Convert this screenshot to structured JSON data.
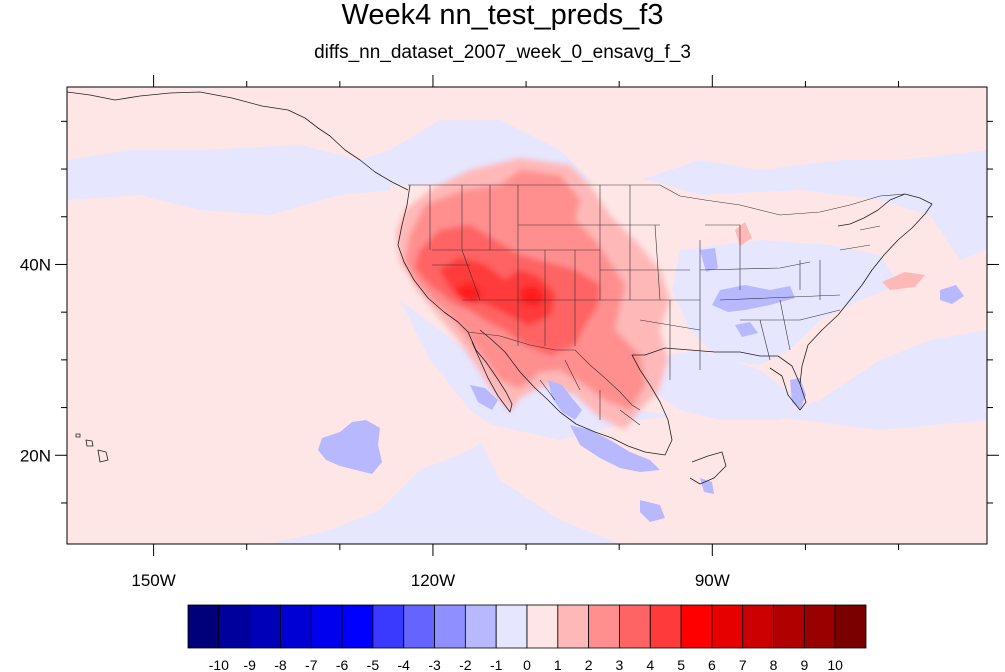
{
  "title": "Week4 nn_test_preds_f3",
  "subtitle": "diffs_nn_dataset_2007_week_0_ensavg_f_3",
  "map": {
    "projection": "cylindrical-equidistant",
    "lon_range": [
      -159.3,
      -60.5
    ],
    "lat_range": [
      10.7,
      58.6
    ],
    "x_ticks": [
      {
        "lon": -150,
        "label": "150W"
      },
      {
        "lon": -120,
        "label": "120W"
      },
      {
        "lon": -90,
        "label": "90W"
      }
    ],
    "y_ticks": [
      {
        "lat": 40,
        "label": "40N"
      },
      {
        "lat": 20,
        "label": "20N"
      }
    ],
    "ocean_background_value": -0.5,
    "anomaly_regions": [
      {
        "name": "western-us-warm",
        "value": 1.5
      },
      {
        "name": "southwest-core",
        "value": 4.5
      },
      {
        "name": "mexico-warm",
        "value": 2.5
      },
      {
        "name": "eastern-us-cool",
        "value": -1.5
      },
      {
        "name": "pacific-cool-patch",
        "value": -2.5
      },
      {
        "name": "caribbean-cool",
        "value": -1.5
      }
    ]
  },
  "colorbar": {
    "labels": [
      "-10",
      "-9",
      "-8",
      "-7",
      "-6",
      "-5",
      "-4",
      "-3",
      "-2",
      "-1",
      "0",
      "1",
      "2",
      "3",
      "4",
      "5",
      "6",
      "7",
      "8",
      "9",
      "10"
    ],
    "colors": [
      "#00007a",
      "#00009c",
      "#0000b8",
      "#0000d4",
      "#0000ee",
      "#0000ff",
      "#3a3aff",
      "#6464ff",
      "#8f8fff",
      "#b8b8ff",
      "#e6e6ff",
      "#ffe6e6",
      "#ffb8b8",
      "#ff8f8f",
      "#ff6464",
      "#ff3a3a",
      "#ff0000",
      "#e60000",
      "#cc0000",
      "#b00000",
      "#990000",
      "#7a0000"
    ]
  }
}
